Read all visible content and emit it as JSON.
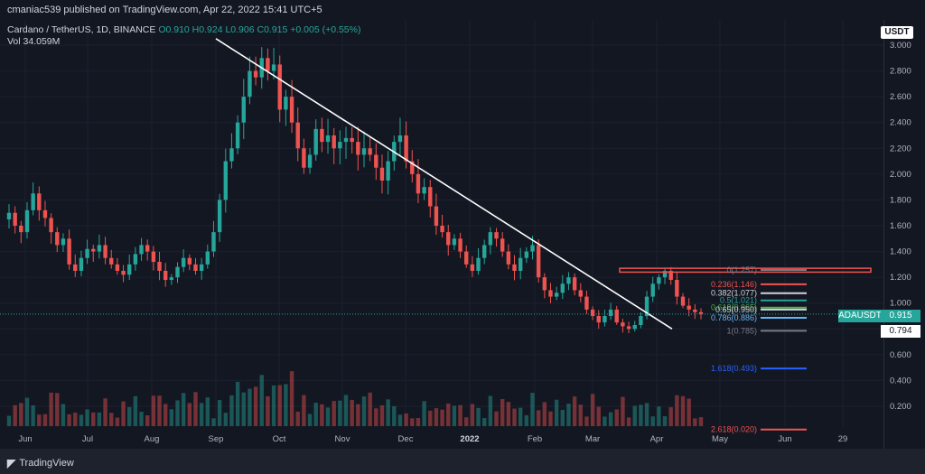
{
  "header": {
    "published": "cmaniac539 published on TradingView.com, Apr 22, 2022 15:41 UTC+5"
  },
  "legend": {
    "symbol": "Cardano / TetherUS, 1D, BINANCE",
    "ohlc": "O0.910 H0.924 L0.906 C0.915 +0.005 (+0.55%)",
    "volume": "Vol 34.059M"
  },
  "currency_button": "USDT",
  "ticker_tag": {
    "symbol": "ADAUSDT",
    "price": "0.915"
  },
  "crosshair_tag": "0.794",
  "brand": "TradingView",
  "colors": {
    "up": "#26a69a",
    "down": "#ef5350",
    "background": "#131722"
  },
  "chart_data": {
    "type": "candlestick",
    "symbol": "ADAUSDT",
    "yaxis": {
      "ticks": [
        "3.000",
        "2.800",
        "2.600",
        "2.400",
        "2.200",
        "2.000",
        "1.800",
        "1.600",
        "1.400",
        "1.200",
        "1.000",
        "0.800",
        "0.600",
        "0.400",
        "0.200"
      ],
      "range": [
        0.0,
        3.1
      ]
    },
    "xaxis": {
      "ticks": [
        "Jun",
        "Jul",
        "Aug",
        "Sep",
        "Oct",
        "Nov",
        "Dec",
        "2022",
        "Feb",
        "Mar",
        "Apr",
        "May",
        "Jun",
        "29"
      ]
    },
    "closes": [
      1.7,
      1.6,
      1.55,
      1.72,
      1.85,
      1.72,
      1.66,
      1.55,
      1.45,
      1.5,
      1.3,
      1.25,
      1.35,
      1.42,
      1.4,
      1.45,
      1.35,
      1.3,
      1.25,
      1.22,
      1.3,
      1.38,
      1.45,
      1.4,
      1.32,
      1.25,
      1.18,
      1.2,
      1.28,
      1.35,
      1.3,
      1.25,
      1.3,
      1.4,
      1.55,
      1.8,
      2.1,
      2.2,
      2.4,
      2.6,
      2.8,
      2.75,
      2.9,
      2.8,
      2.85,
      2.5,
      2.6,
      2.4,
      2.2,
      2.05,
      2.15,
      2.35,
      2.25,
      2.3,
      2.2,
      2.25,
      2.28,
      2.25,
      2.15,
      2.2,
      2.15,
      2.05,
      1.95,
      2.1,
      2.25,
      2.3,
      2.1,
      2.0,
      1.85,
      1.9,
      1.75,
      1.6,
      1.55,
      1.45,
      1.5,
      1.4,
      1.3,
      1.25,
      1.35,
      1.45,
      1.55,
      1.5,
      1.4,
      1.3,
      1.25,
      1.35,
      1.4,
      1.45,
      1.2,
      1.1,
      1.05,
      1.08,
      1.15,
      1.2,
      1.1,
      1.05,
      0.95,
      0.9,
      0.85,
      0.9,
      0.95,
      0.85,
      0.82,
      0.8,
      0.83,
      0.9,
      1.05,
      1.15,
      1.2,
      1.25,
      1.18,
      1.05,
      0.98,
      0.95,
      0.93,
      0.915
    ],
    "trendline": {
      "from": [
        "Sep",
        3.05
      ],
      "to": [
        "Apr",
        0.8
      ]
    },
    "fibonacci": [
      {
        "label": "0(1.257)",
        "value": 1.257,
        "color": "#787b86"
      },
      {
        "label": "0.236(1.146)",
        "value": 1.146,
        "color": "#ef5350"
      },
      {
        "label": "0.382(1.077)",
        "value": 1.077,
        "color": "#d1d4dc"
      },
      {
        "label": "0.5(1.021)",
        "value": 1.021,
        "color": "#26a69a"
      },
      {
        "label": "0.618(0.965)",
        "value": 0.965,
        "color": "#4caf50"
      },
      {
        "label": "0.65(0.950)",
        "value": 0.95,
        "color": "#d1d4dc"
      },
      {
        "label": "0.786(0.886)",
        "value": 0.886,
        "color": "#64b5f6"
      },
      {
        "label": "1(0.785)",
        "value": 0.785,
        "color": "#787b86"
      },
      {
        "label": "1.618(0.493)",
        "value": 0.493,
        "color": "#2962ff"
      },
      {
        "label": "2.618(0.020)",
        "value": 0.02,
        "color": "#ef5350"
      }
    ],
    "resistance_zone": [
      1.24,
      1.27
    ]
  }
}
